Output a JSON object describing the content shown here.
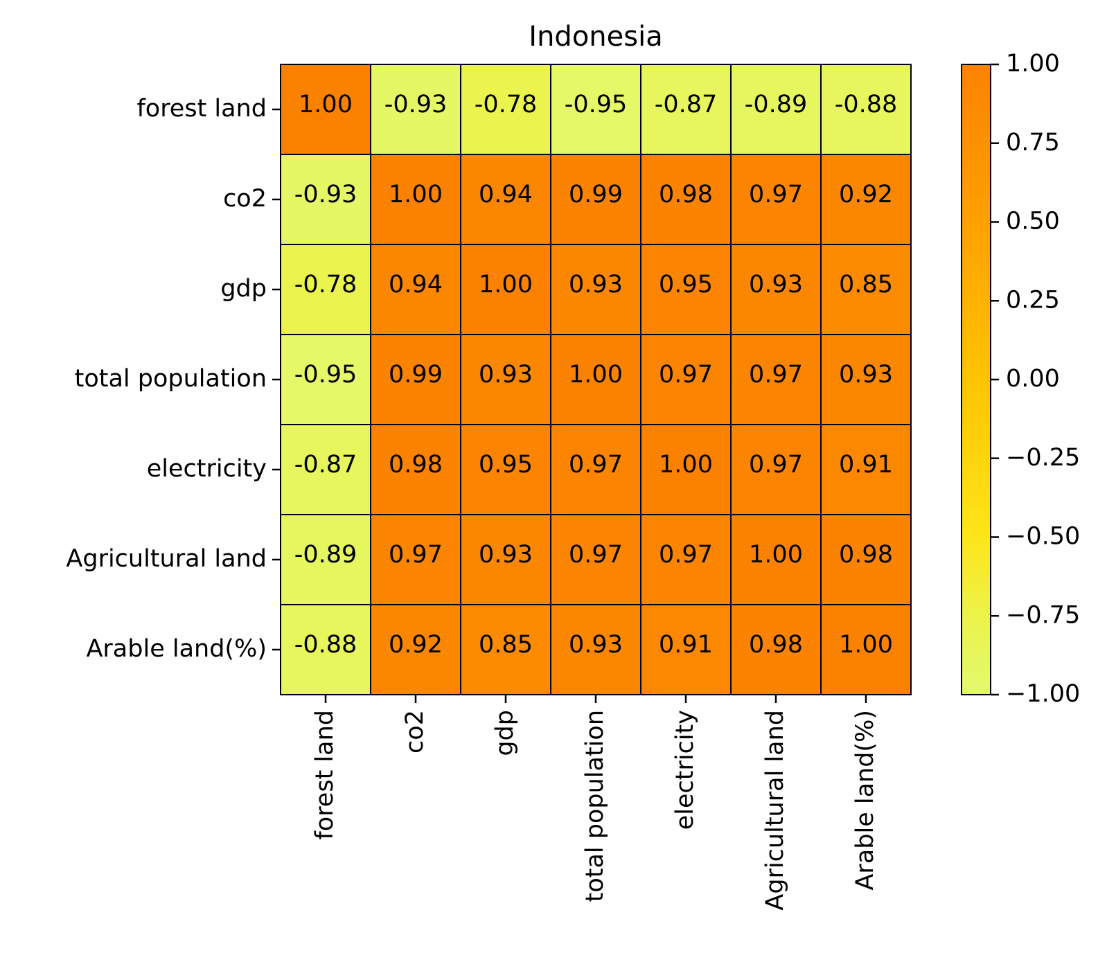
{
  "chart_data": {
    "type": "heatmap",
    "title": "Indonesia",
    "xlabel": "",
    "ylabel": "",
    "row_labels": [
      "forest land",
      "co2",
      "gdp",
      "total population",
      "electricity",
      "Agricultural land",
      "Arable land(%)"
    ],
    "col_labels": [
      "forest land",
      "co2",
      "gdp",
      "total population",
      "electricity",
      "Agricultural land",
      "Arable land(%)"
    ],
    "values": [
      [
        1.0,
        -0.93,
        -0.78,
        -0.95,
        -0.87,
        -0.89,
        -0.88
      ],
      [
        -0.93,
        1.0,
        0.94,
        0.99,
        0.98,
        0.97,
        0.92
      ],
      [
        -0.78,
        0.94,
        1.0,
        0.93,
        0.95,
        0.93,
        0.85
      ],
      [
        -0.95,
        0.99,
        0.93,
        1.0,
        0.97,
        0.97,
        0.93
      ],
      [
        -0.87,
        0.98,
        0.95,
        0.97,
        1.0,
        0.97,
        0.91
      ],
      [
        -0.89,
        0.97,
        0.93,
        0.97,
        0.97,
        1.0,
        0.98
      ],
      [
        -0.88,
        0.92,
        0.85,
        0.93,
        0.91,
        0.98,
        1.0
      ]
    ],
    "value_labels": [
      [
        "1.00",
        "-0.93",
        "-0.78",
        "-0.95",
        "-0.87",
        "-0.89",
        "-0.88"
      ],
      [
        "-0.93",
        "1.00",
        "0.94",
        "0.99",
        "0.98",
        "0.97",
        "0.92"
      ],
      [
        "-0.78",
        "0.94",
        "1.00",
        "0.93",
        "0.95",
        "0.93",
        "0.85"
      ],
      [
        "-0.95",
        "0.99",
        "0.93",
        "1.00",
        "0.97",
        "0.97",
        "0.93"
      ],
      [
        "-0.87",
        "0.98",
        "0.95",
        "0.97",
        "1.00",
        "0.97",
        "0.91"
      ],
      [
        "-0.89",
        "0.97",
        "0.93",
        "0.97",
        "0.97",
        "1.00",
        "0.98"
      ],
      [
        "-0.88",
        "0.92",
        "0.85",
        "0.93",
        "0.91",
        "0.98",
        "1.00"
      ]
    ],
    "vmin": -1.0,
    "vmax": 1.0,
    "colorbar_ticks": [
      "1.00",
      "0.75",
      "0.50",
      "0.25",
      "0.00",
      "−0.25",
      "−0.50",
      "−0.75",
      "−1.00"
    ],
    "colorbar_tick_values": [
      1.0,
      0.75,
      0.5,
      0.25,
      0.0,
      -0.25,
      -0.5,
      -0.75,
      -1.0
    ],
    "colormap": [
      {
        "value": 1.0,
        "color": "#fb8200"
      },
      {
        "value": 0.5,
        "color": "#fea000"
      },
      {
        "value": 0.0,
        "color": "#fec400"
      },
      {
        "value": -0.5,
        "color": "#fde51a"
      },
      {
        "value": -0.75,
        "color": "#ecf34a"
      },
      {
        "value": -1.0,
        "color": "#e2f96f"
      }
    ],
    "cell_border_color": "#000000",
    "grid": false,
    "legend": "colorbar-right"
  }
}
